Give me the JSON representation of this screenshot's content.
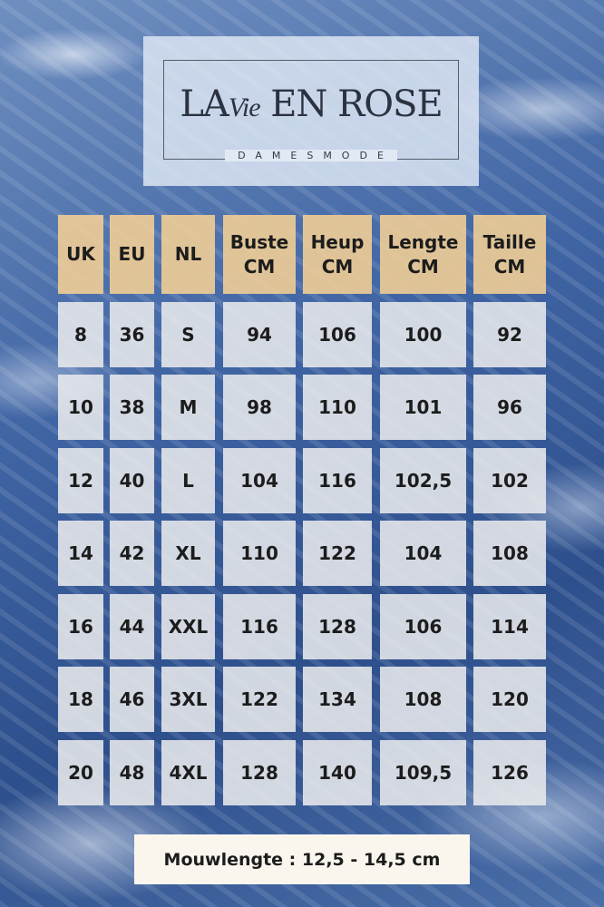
{
  "logo": {
    "text_left": "LA",
    "text_script": "Vie",
    "text_right": "EN ROSE",
    "subtitle": "DAMESMODE"
  },
  "table": {
    "headers": [
      [
        "UK"
      ],
      [
        "EU"
      ],
      [
        "NL"
      ],
      [
        "Buste",
        "CM"
      ],
      [
        "Heup",
        "CM"
      ],
      [
        "Lengte",
        "CM"
      ],
      [
        "Taille",
        "CM"
      ]
    ],
    "rows": [
      [
        "8",
        "36",
        "S",
        "94",
        "106",
        "100",
        "92"
      ],
      [
        "10",
        "38",
        "M",
        "98",
        "110",
        "101",
        "96"
      ],
      [
        "12",
        "40",
        "L",
        "104",
        "116",
        "102,5",
        "102"
      ],
      [
        "14",
        "42",
        "XL",
        "110",
        "122",
        "104",
        "108"
      ],
      [
        "16",
        "44",
        "XXL",
        "116",
        "128",
        "106",
        "114"
      ],
      [
        "18",
        "46",
        "3XL",
        "122",
        "134",
        "108",
        "120"
      ],
      [
        "20",
        "48",
        "4XL",
        "128",
        "140",
        "109,5",
        "126"
      ]
    ]
  },
  "footer": {
    "text": "Mouwlengte : 12,5 - 14,5 cm"
  },
  "colors": {
    "header_bg": "#f0cd96",
    "cell_bg": "#e8e9ec",
    "background": "#3f64a3"
  }
}
